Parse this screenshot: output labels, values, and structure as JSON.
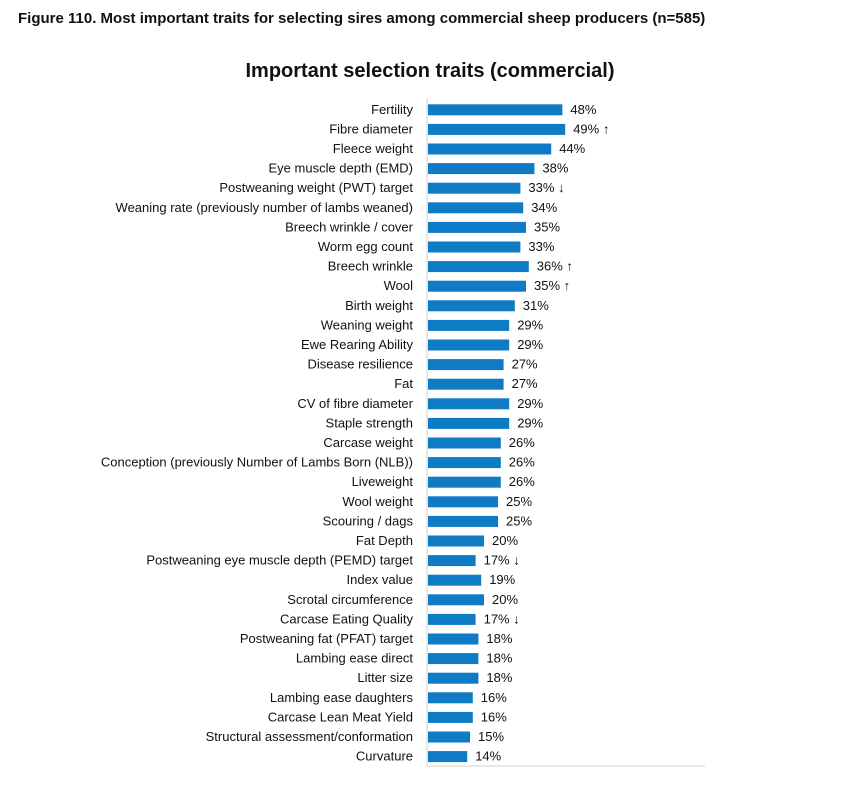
{
  "figure_caption": "Figure 110. Most important traits for selecting sires among commercial sheep producers (n=585)",
  "chart_data": {
    "type": "bar",
    "orientation": "horizontal",
    "title": "Important selection traits (commercial)",
    "xlabel": "",
    "ylabel": "",
    "xlim": [
      0,
      0.72
    ],
    "bar_color": "#0F7BC4",
    "grid": false,
    "legend": "none",
    "categories": [
      "Fertility",
      "Fibre diameter",
      "Fleece weight",
      "Eye muscle depth (EMD)",
      "Postweaning weight (PWT) target",
      "Weaning rate (previously number of lambs weaned)",
      "Breech wrinkle / cover",
      "Worm egg count",
      "Breech wrinkle",
      "Wool",
      "Birth weight",
      "Weaning weight",
      "Ewe Rearing Ability",
      "Disease resilience",
      "Fat",
      "CV of fibre diameter",
      "Staple strength",
      "Carcase weight",
      "Conception (previously Number of Lambs Born (NLB))",
      "Liveweight",
      "Wool weight",
      "Scouring / dags",
      "Fat Depth",
      "Postweaning eye muscle depth (PEMD) target",
      "Index value",
      "Scrotal circumference",
      "Carcase Eating Quality",
      "Postweaning fat (PFAT) target",
      "Lambing ease direct",
      "Litter size",
      "Lambing ease daughters",
      "Carcase Lean Meat Yield",
      "Structural assessment/conformation",
      "Curvature"
    ],
    "values": [
      0.48,
      0.49,
      0.44,
      0.38,
      0.33,
      0.34,
      0.35,
      0.33,
      0.36,
      0.35,
      0.31,
      0.29,
      0.29,
      0.27,
      0.27,
      0.29,
      0.29,
      0.26,
      0.26,
      0.26,
      0.25,
      0.25,
      0.2,
      0.17,
      0.19,
      0.2,
      0.17,
      0.18,
      0.18,
      0.18,
      0.16,
      0.16,
      0.15,
      0.14
    ],
    "value_labels": [
      "48%",
      "49% ↑",
      "44%",
      "38%",
      "33% ↓",
      "34%",
      "35%",
      "33%",
      "36% ↑",
      "35% ↑",
      "31%",
      "29%",
      "29%",
      "27%",
      "27%",
      "29%",
      "29%",
      "26%",
      "26%",
      "26%",
      "25%",
      "25%",
      "20%",
      "17% ↓",
      "19%",
      "20%",
      "17% ↓",
      "18%",
      "18%",
      "18%",
      "16%",
      "16%",
      "15%",
      "14%"
    ]
  }
}
